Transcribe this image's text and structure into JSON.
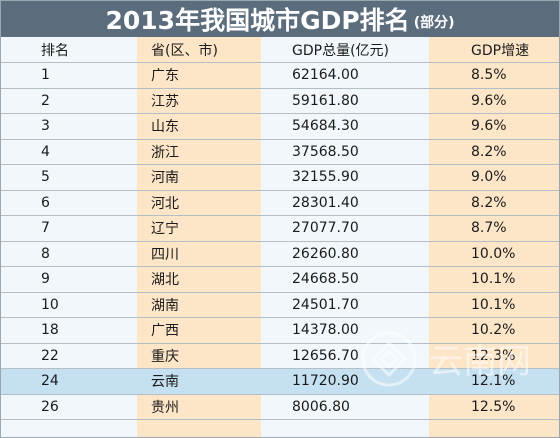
{
  "title": {
    "main": "2013年我国城市GDP排名",
    "sub": "(部分)"
  },
  "columns": {
    "rank": "排名",
    "region": "省(区、市)",
    "gdp": "GDP总量(亿元)",
    "growth": "GDP增速"
  },
  "rows": [
    {
      "rank": "1",
      "region": "广东",
      "gdp": "62164.00",
      "growth": "8.5%"
    },
    {
      "rank": "2",
      "region": "江苏",
      "gdp": "59161.80",
      "growth": "9.6%"
    },
    {
      "rank": "3",
      "region": "山东",
      "gdp": "54684.30",
      "growth": "9.6%"
    },
    {
      "rank": "4",
      "region": "浙江",
      "gdp": "37568.50",
      "growth": "8.2%"
    },
    {
      "rank": "5",
      "region": "河南",
      "gdp": "32155.90",
      "growth": "9.0%"
    },
    {
      "rank": "6",
      "region": "河北",
      "gdp": "28301.40",
      "growth": "8.2%"
    },
    {
      "rank": "7",
      "region": "辽宁",
      "gdp": "27077.70",
      "growth": "8.7%"
    },
    {
      "rank": "8",
      "region": "四川",
      "gdp": "26260.80",
      "growth": "10.0%"
    },
    {
      "rank": "9",
      "region": "湖北",
      "gdp": "24668.50",
      "growth": "10.1%"
    },
    {
      "rank": "10",
      "region": "湖南",
      "gdp": "24501.70",
      "growth": "10.1%"
    },
    {
      "rank": "18",
      "region": "广西",
      "gdp": "14378.00",
      "growth": "10.2%"
    },
    {
      "rank": "22",
      "region": "重庆",
      "gdp": "12656.70",
      "growth": "12.3%"
    },
    {
      "rank": "24",
      "region": "云南",
      "gdp": "11720.90",
      "growth": "12.1%"
    },
    {
      "rank": "26",
      "region": "贵州",
      "gdp": "8006.80",
      "growth": "12.5%"
    }
  ],
  "highlight_row": 12,
  "watermark": {
    "text": "云南网",
    "icon": "ornament-icon"
  },
  "colors": {
    "title_bg": "#5b6d7d",
    "band_light": "#f1f7fb",
    "band_peach": "#fde6c7",
    "highlight": "#c5e0f0"
  }
}
